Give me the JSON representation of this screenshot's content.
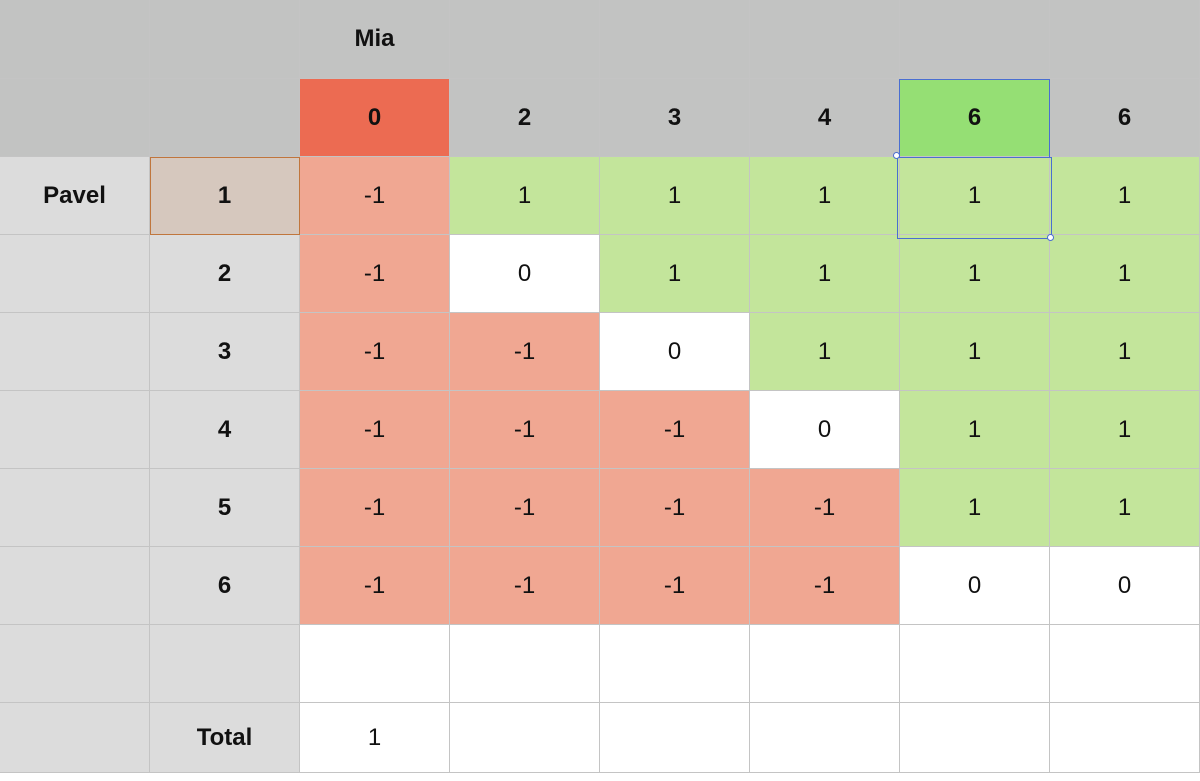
{
  "header": {
    "column_owner": "Mia",
    "columns": [
      "0",
      "2",
      "3",
      "4",
      "6",
      "6"
    ]
  },
  "rows_owner": "Pavel",
  "rows": [
    {
      "label": "1",
      "values": [
        "-1",
        "1",
        "1",
        "1",
        "1",
        "1"
      ]
    },
    {
      "label": "2",
      "values": [
        "-1",
        "0",
        "1",
        "1",
        "1",
        "1"
      ]
    },
    {
      "label": "3",
      "values": [
        "-1",
        "-1",
        "0",
        "1",
        "1",
        "1"
      ]
    },
    {
      "label": "4",
      "values": [
        "-1",
        "-1",
        "-1",
        "0",
        "1",
        "1"
      ]
    },
    {
      "label": "5",
      "values": [
        "-1",
        "-1",
        "-1",
        "-1",
        "1",
        "1"
      ]
    },
    {
      "label": "6",
      "values": [
        "-1",
        "-1",
        "-1",
        "-1",
        "0",
        "0"
      ]
    }
  ],
  "total": {
    "label": "Total",
    "value": "1"
  },
  "colors": {
    "negative": "#f0a792",
    "positive": "#c3e59b",
    "header_highlight_orange": "#ec6b52",
    "header_highlight_green": "#95df74",
    "selection": "#4a6ed1"
  }
}
